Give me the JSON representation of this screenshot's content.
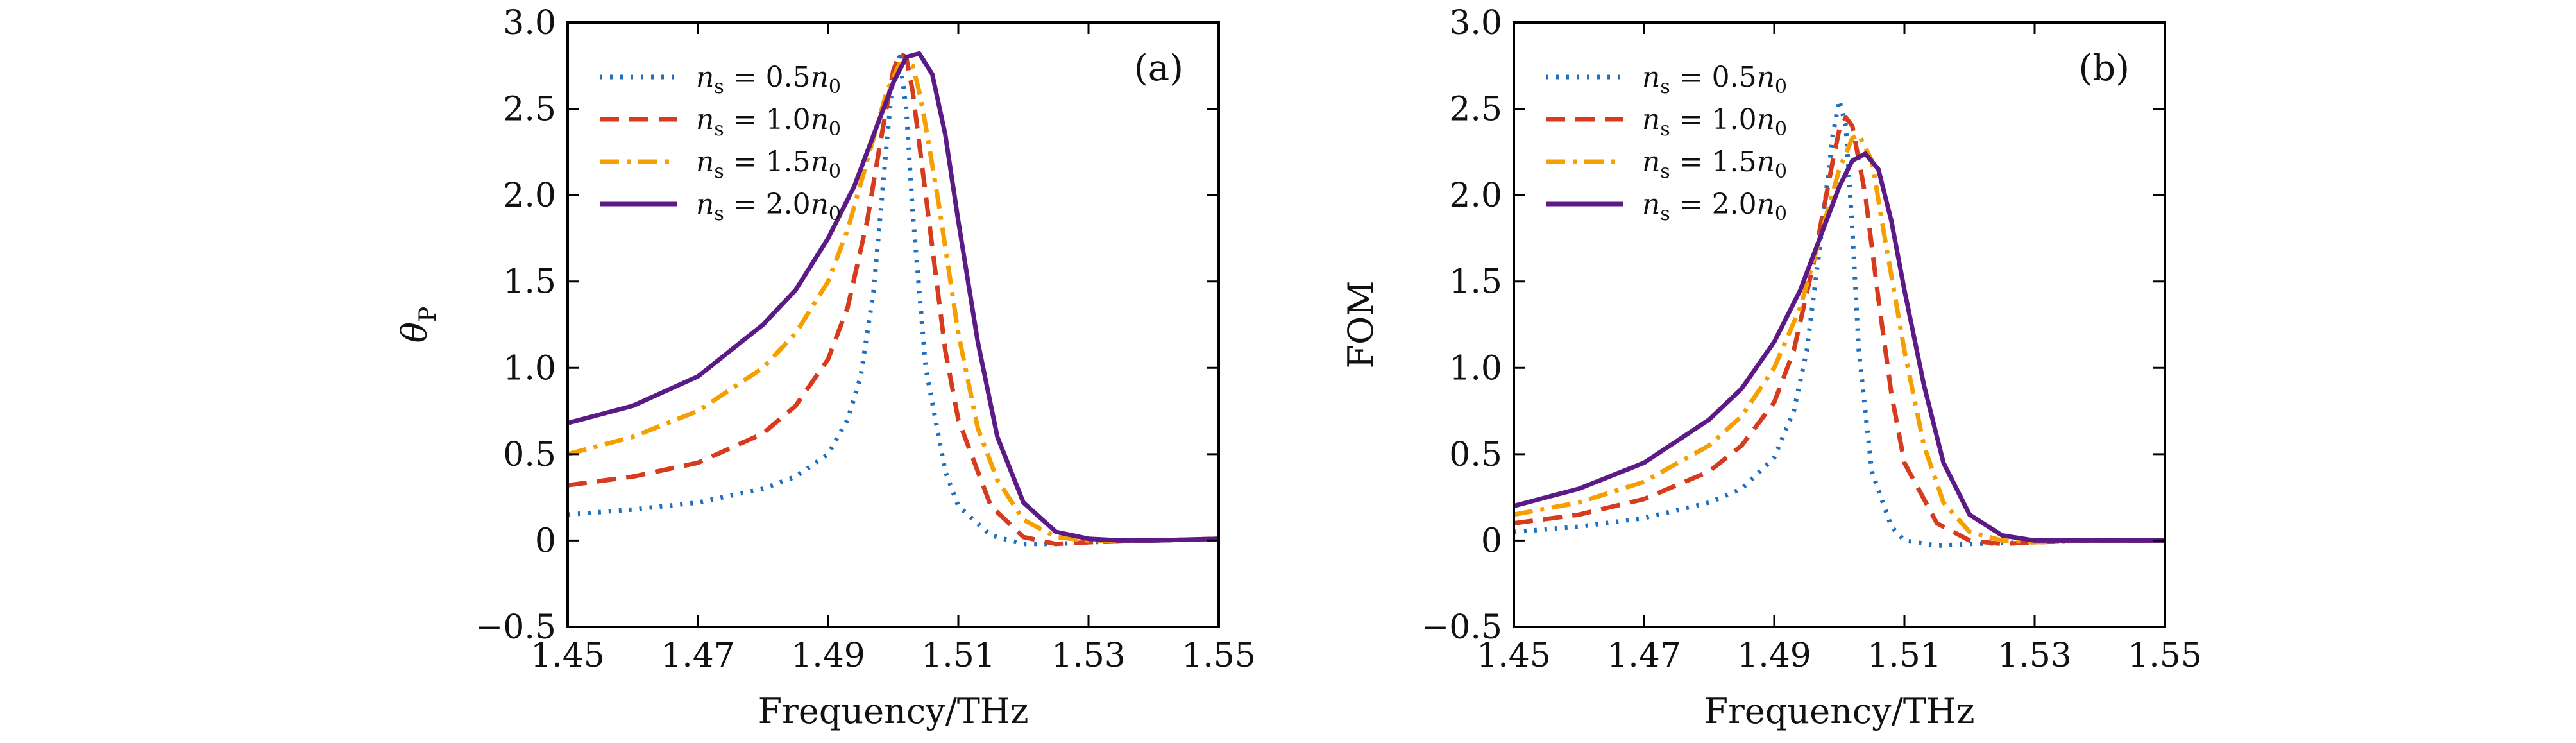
{
  "chart_data": [
    {
      "type": "line",
      "panel_label": "(a)",
      "xlabel": "Frequency/THz",
      "ylabel": "θ_P",
      "ylabel_main": "θ",
      "ylabel_sub": "P",
      "xlim": [
        1.45,
        1.55
      ],
      "ylim": [
        -0.5,
        3.0
      ],
      "xticks": [
        1.45,
        1.47,
        1.49,
        1.51,
        1.53,
        1.55
      ],
      "xtick_labels": [
        "1.45",
        "1.47",
        "1.49",
        "1.51",
        "1.53",
        "1.55"
      ],
      "yticks": [
        -0.5,
        0,
        0.5,
        1.0,
        1.5,
        2.0,
        2.5,
        3.0
      ],
      "ytick_labels": [
        "−0.5",
        "0",
        "0.5",
        "1.0",
        "1.5",
        "2.0",
        "2.5",
        "3.0"
      ],
      "legend_position": "top-left",
      "grid": false,
      "series": [
        {
          "name": "ns = 0.5n0",
          "ratio": "0.5",
          "color": "#1f6fbf",
          "dash": "dotted",
          "x": [
            1.45,
            1.46,
            1.47,
            1.48,
            1.485,
            1.49,
            1.493,
            1.495,
            1.497,
            1.499,
            1.5,
            1.501,
            1.502,
            1.503,
            1.505,
            1.508,
            1.51,
            1.515,
            1.52,
            1.525,
            1.53,
            1.54,
            1.55
          ],
          "y": [
            0.15,
            0.18,
            0.22,
            0.3,
            0.37,
            0.5,
            0.7,
            0.95,
            1.45,
            2.3,
            2.7,
            2.8,
            2.5,
            1.9,
            1.0,
            0.4,
            0.2,
            0.03,
            -0.02,
            -0.02,
            -0.01,
            0.0,
            0.01
          ]
        },
        {
          "name": "ns = 1.0n0",
          "ratio": "1.0",
          "color": "#d63b1e",
          "dash": "dashed",
          "x": [
            1.45,
            1.46,
            1.47,
            1.48,
            1.485,
            1.49,
            1.493,
            1.496,
            1.498,
            1.5,
            1.501,
            1.502,
            1.503,
            1.504,
            1.506,
            1.508,
            1.51,
            1.515,
            1.52,
            1.525,
            1.53,
            1.54,
            1.55
          ],
          "y": [
            0.32,
            0.37,
            0.45,
            0.62,
            0.78,
            1.05,
            1.35,
            1.85,
            2.3,
            2.72,
            2.82,
            2.8,
            2.6,
            2.3,
            1.7,
            1.1,
            0.7,
            0.2,
            0.02,
            -0.02,
            -0.01,
            0.0,
            0.01
          ]
        },
        {
          "name": "ns = 1.5n0",
          "ratio": "1.5",
          "color": "#f5a000",
          "dash": "dashdot",
          "x": [
            1.45,
            1.46,
            1.47,
            1.48,
            1.485,
            1.49,
            1.493,
            1.496,
            1.499,
            1.501,
            1.503,
            1.504,
            1.505,
            1.507,
            1.51,
            1.513,
            1.516,
            1.52,
            1.525,
            1.53,
            1.54,
            1.55
          ],
          "y": [
            0.5,
            0.6,
            0.75,
            1.0,
            1.2,
            1.5,
            1.8,
            2.2,
            2.6,
            2.76,
            2.75,
            2.6,
            2.4,
            1.95,
            1.2,
            0.65,
            0.35,
            0.12,
            0.02,
            0.0,
            0.0,
            0.01
          ]
        },
        {
          "name": "ns = 2.0n0",
          "ratio": "2.0",
          "color": "#5b1a86",
          "dash": "solid",
          "x": [
            1.45,
            1.46,
            1.47,
            1.48,
            1.485,
            1.49,
            1.494,
            1.497,
            1.5,
            1.502,
            1.504,
            1.506,
            1.508,
            1.51,
            1.513,
            1.516,
            1.52,
            1.525,
            1.53,
            1.535,
            1.54,
            1.55
          ],
          "y": [
            0.68,
            0.78,
            0.95,
            1.25,
            1.45,
            1.75,
            2.05,
            2.35,
            2.65,
            2.8,
            2.82,
            2.7,
            2.35,
            1.85,
            1.15,
            0.6,
            0.22,
            0.05,
            0.01,
            0.0,
            0.0,
            0.01
          ]
        }
      ]
    },
    {
      "type": "line",
      "panel_label": "(b)",
      "xlabel": "Frequency/THz",
      "ylabel": "FOM",
      "xlim": [
        1.45,
        1.55
      ],
      "ylim": [
        -0.5,
        3.0
      ],
      "xticks": [
        1.45,
        1.47,
        1.49,
        1.51,
        1.53,
        1.55
      ],
      "xtick_labels": [
        "1.45",
        "1.47",
        "1.49",
        "1.51",
        "1.53",
        "1.55"
      ],
      "yticks": [
        -0.5,
        0,
        0.5,
        1.0,
        1.5,
        2.0,
        2.5,
        3.0
      ],
      "ytick_labels": [
        "−0.5",
        "0",
        "0.5",
        "1.0",
        "1.5",
        "2.0",
        "2.5",
        "3.0"
      ],
      "legend_position": "top-left",
      "grid": false,
      "series": [
        {
          "name": "ns = 0.5n0",
          "ratio": "0.5",
          "color": "#1f6fbf",
          "dash": "dotted",
          "x": [
            1.45,
            1.46,
            1.47,
            1.48,
            1.485,
            1.49,
            1.493,
            1.495,
            1.497,
            1.499,
            1.5,
            1.501,
            1.502,
            1.503,
            1.505,
            1.508,
            1.51,
            1.515,
            1.52,
            1.53,
            1.54,
            1.55
          ],
          "y": [
            0.05,
            0.08,
            0.13,
            0.22,
            0.3,
            0.48,
            0.75,
            1.1,
            1.7,
            2.35,
            2.55,
            2.4,
            1.8,
            1.1,
            0.4,
            0.08,
            0.0,
            -0.03,
            -0.02,
            -0.01,
            0.0,
            0.0
          ]
        },
        {
          "name": "ns = 1.0n0",
          "ratio": "1.0",
          "color": "#d63b1e",
          "dash": "dashed",
          "x": [
            1.45,
            1.46,
            1.47,
            1.48,
            1.485,
            1.49,
            1.493,
            1.496,
            1.499,
            1.5,
            1.501,
            1.502,
            1.504,
            1.506,
            1.508,
            1.51,
            1.515,
            1.52,
            1.525,
            1.53,
            1.54,
            1.55
          ],
          "y": [
            0.1,
            0.15,
            0.24,
            0.4,
            0.55,
            0.8,
            1.1,
            1.6,
            2.2,
            2.38,
            2.45,
            2.4,
            2.0,
            1.4,
            0.85,
            0.45,
            0.1,
            0.0,
            -0.02,
            -0.01,
            0.0,
            0.0
          ]
        },
        {
          "name": "ns = 1.5n0",
          "ratio": "1.5",
          "color": "#f5a000",
          "dash": "dashdot",
          "x": [
            1.45,
            1.46,
            1.47,
            1.48,
            1.485,
            1.49,
            1.494,
            1.497,
            1.5,
            1.502,
            1.503,
            1.505,
            1.507,
            1.51,
            1.513,
            1.516,
            1.52,
            1.525,
            1.53,
            1.54,
            1.55
          ],
          "y": [
            0.15,
            0.22,
            0.34,
            0.55,
            0.72,
            1.0,
            1.35,
            1.75,
            2.15,
            2.33,
            2.35,
            2.2,
            1.75,
            1.1,
            0.55,
            0.22,
            0.05,
            0.0,
            -0.01,
            0.0,
            0.0
          ]
        },
        {
          "name": "ns = 2.0n0",
          "ratio": "2.0",
          "color": "#5b1a86",
          "dash": "solid",
          "x": [
            1.45,
            1.46,
            1.47,
            1.48,
            1.485,
            1.49,
            1.494,
            1.497,
            1.5,
            1.502,
            1.504,
            1.506,
            1.508,
            1.51,
            1.513,
            1.516,
            1.52,
            1.525,
            1.53,
            1.535,
            1.54,
            1.55
          ],
          "y": [
            0.2,
            0.3,
            0.45,
            0.7,
            0.88,
            1.15,
            1.45,
            1.75,
            2.05,
            2.2,
            2.24,
            2.15,
            1.85,
            1.45,
            0.9,
            0.45,
            0.15,
            0.03,
            0.0,
            0.0,
            0.0,
            0.0
          ]
        }
      ]
    }
  ]
}
